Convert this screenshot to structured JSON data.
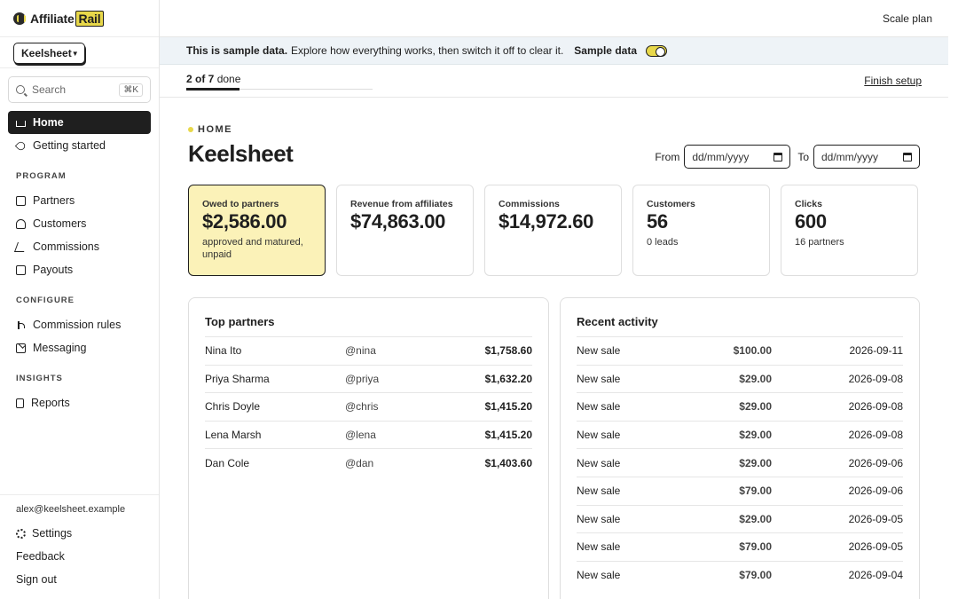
{
  "brand": {
    "name_prefix": "Affiliate",
    "name_suffix": "Rail"
  },
  "workspace": {
    "selected": "Keelsheet"
  },
  "search": {
    "placeholder": "Search",
    "shortcut": "⌘K"
  },
  "nav": {
    "primary": [
      {
        "label": "Home",
        "icon": "house-icon",
        "active": true
      },
      {
        "label": "Getting started",
        "icon": "rocket-icon",
        "active": false
      }
    ],
    "program_label": "PROGRAM",
    "program": [
      {
        "label": "Partners",
        "icon": "tag-icon"
      },
      {
        "label": "Customers",
        "icon": "users-icon"
      },
      {
        "label": "Commissions",
        "icon": "chart-line-icon"
      },
      {
        "label": "Payouts",
        "icon": "payout-icon"
      }
    ],
    "configure_label": "CONFIGURE",
    "configure": [
      {
        "label": "Commission rules",
        "icon": "branch-icon"
      },
      {
        "label": "Messaging",
        "icon": "message-icon"
      }
    ],
    "insights_label": "INSIGHTS",
    "insights": [
      {
        "label": "Reports",
        "icon": "report-icon"
      }
    ]
  },
  "footer": {
    "email": "alex@keelsheet.example",
    "settings": "Settings",
    "feedback": "Feedback",
    "signout": "Sign out"
  },
  "topbar": {
    "scale_plan": "Scale plan"
  },
  "banner": {
    "bold": "This is sample data.",
    "text": "Explore how everything works, then switch it off to clear it.",
    "toggle_label": "Sample data",
    "toggle_on": true
  },
  "setup": {
    "progress_bold": "2 of 7",
    "progress_suffix": "done",
    "progress_fraction": 0.2857,
    "finish": "Finish setup"
  },
  "page": {
    "breadcrumb": "HOME",
    "title": "Keelsheet",
    "from_label": "From",
    "to_label": "To",
    "date_placeholder": "dd/mm/yyyy"
  },
  "stats": [
    {
      "label": "Owed to partners",
      "value": "$2,586.00",
      "sub": "approved and matured, unpaid",
      "highlight": true
    },
    {
      "label": "Revenue from affiliates",
      "value": "$74,863.00",
      "sub": ""
    },
    {
      "label": "Commissions",
      "value": "$14,972.60",
      "sub": ""
    },
    {
      "label": "Customers",
      "value": "56",
      "sub": "0 leads"
    },
    {
      "label": "Clicks",
      "value": "600",
      "sub": "16 partners"
    }
  ],
  "top_partners": {
    "title": "Top partners",
    "rows": [
      {
        "name": "Nina Ito",
        "handle": "@nina",
        "amount": "$1,758.60"
      },
      {
        "name": "Priya Sharma",
        "handle": "@priya",
        "amount": "$1,632.20"
      },
      {
        "name": "Chris Doyle",
        "handle": "@chris",
        "amount": "$1,415.20"
      },
      {
        "name": "Lena Marsh",
        "handle": "@lena",
        "amount": "$1,415.20"
      },
      {
        "name": "Dan Cole",
        "handle": "@dan",
        "amount": "$1,403.60"
      }
    ]
  },
  "recent_activity": {
    "title": "Recent activity",
    "rows": [
      {
        "event": "New sale",
        "amount": "$100.00",
        "date": "2026-09-11"
      },
      {
        "event": "New sale",
        "amount": "$29.00",
        "date": "2026-09-08"
      },
      {
        "event": "New sale",
        "amount": "$29.00",
        "date": "2026-09-08"
      },
      {
        "event": "New sale",
        "amount": "$29.00",
        "date": "2026-09-08"
      },
      {
        "event": "New sale",
        "amount": "$29.00",
        "date": "2026-09-06"
      },
      {
        "event": "New sale",
        "amount": "$79.00",
        "date": "2026-09-06"
      },
      {
        "event": "New sale",
        "amount": "$29.00",
        "date": "2026-09-05"
      },
      {
        "event": "New sale",
        "amount": "$79.00",
        "date": "2026-09-05"
      },
      {
        "event": "New sale",
        "amount": "$79.00",
        "date": "2026-09-04"
      }
    ]
  },
  "colors": {
    "accent": "#e8d84a",
    "highlight_bg": "#fbf2b8",
    "banner_bg": "#eef3f7",
    "text": "#1f1f1f"
  }
}
